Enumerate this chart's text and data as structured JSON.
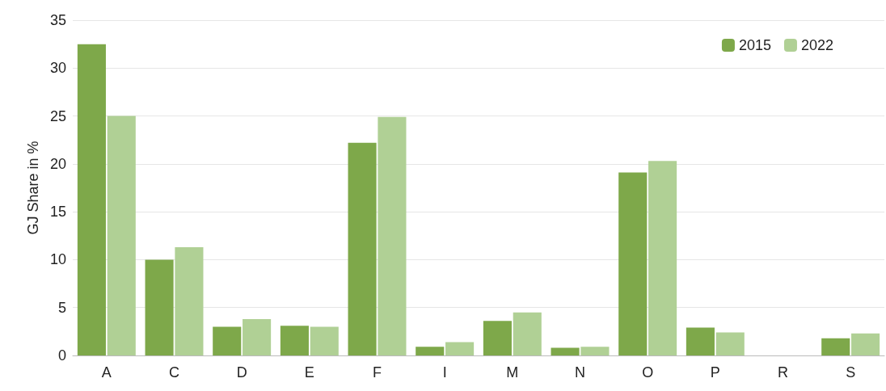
{
  "chart_data": {
    "type": "bar",
    "ylabel": "GJ Share in %",
    "categories": [
      "A",
      "C",
      "D",
      "E",
      "F",
      "I",
      "M",
      "N",
      "O",
      "P",
      "R",
      "S"
    ],
    "series": [
      {
        "name": "2015",
        "color": "#7ea84a",
        "values": [
          32.5,
          10.0,
          3.0,
          3.1,
          22.2,
          0.9,
          3.6,
          0.8,
          19.1,
          2.9,
          0,
          1.8
        ]
      },
      {
        "name": "2022",
        "color": "#b0d095",
        "values": [
          25.0,
          11.3,
          3.8,
          3.0,
          24.9,
          1.4,
          4.5,
          0.9,
          20.3,
          2.4,
          0,
          2.3
        ]
      }
    ],
    "ylim": [
      0,
      35
    ],
    "yticks": [
      0,
      5,
      10,
      15,
      20,
      25,
      30,
      35
    ],
    "grid": "y",
    "legend": "top right"
  }
}
